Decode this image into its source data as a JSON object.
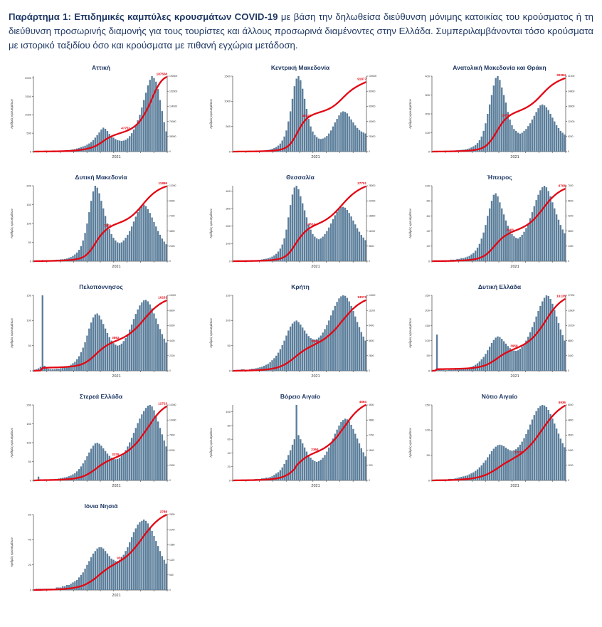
{
  "page": {
    "heading": {
      "bold": "Παράρτημα 1: Επιδημικές καμπύλες κρουσμάτων COVID-19",
      "rest": " με βάση την δηλωθείσα διεύθυνση μόνιμης κατοικίας του κρούσματος ή τη διεύθυνση προσωρινής διαμονής για τους τουρίστες και άλλους προσωρινά διαμένοντες στην Ελλάδα. Συμπεριλαμβάνονται τόσο κρούσματα με ιστορικό ταξιδίου όσο και κρούσματα με πιθανή εγχώρια μετάδοση."
    },
    "colors": {
      "title": "#1f3864",
      "bar": "#5b7e9b",
      "line": "#e30613",
      "axis": "#444444",
      "tick_text": "#333333"
    }
  },
  "axis": {
    "ylabel": "Αριθμός κρουσμάτων",
    "xtick": "2021"
  },
  "chart_data": [
    {
      "type": "bar",
      "title": "Αττική",
      "ylabel": "Αριθμός κρουσμάτων",
      "xtick": "2021",
      "ymax": 2050,
      "ystep": 500,
      "total": 187558,
      "mid": 47751,
      "mid_index": 45,
      "values": [
        5,
        8,
        12,
        15,
        10,
        9,
        7,
        6,
        8,
        10,
        12,
        15,
        18,
        22,
        25,
        30,
        35,
        40,
        50,
        60,
        70,
        85,
        100,
        120,
        140,
        160,
        190,
        220,
        260,
        310,
        380,
        450,
        520,
        600,
        650,
        620,
        560,
        480,
        420,
        380,
        340,
        310,
        300,
        290,
        300,
        320,
        360,
        420,
        500,
        600,
        720,
        850,
        1000,
        1200,
        1400,
        1600,
        1800,
        1950,
        2050,
        2000,
        1900,
        1700,
        1400,
        1100,
        800,
        550
      ]
    },
    {
      "type": "bar",
      "title": "Κεντρική Μακεδονία",
      "ylabel": "Αριθμός κρουσμάτων",
      "xtick": "2021",
      "ymax": 1500,
      "ystep": 500,
      "total": 91877,
      "mid": 48143,
      "mid_index": 36,
      "values": [
        3,
        5,
        7,
        9,
        8,
        6,
        5,
        6,
        8,
        10,
        12,
        14,
        16,
        18,
        20,
        24,
        28,
        34,
        42,
        55,
        70,
        90,
        120,
        160,
        220,
        300,
        420,
        600,
        800,
        1050,
        1300,
        1450,
        1500,
        1420,
        1250,
        1050,
        850,
        650,
        500,
        400,
        330,
        290,
        260,
        250,
        260,
        280,
        310,
        360,
        420,
        500,
        580,
        650,
        720,
        780,
        800,
        790,
        760,
        700,
        640,
        580,
        520,
        470,
        430,
        400,
        380,
        360
      ]
    },
    {
      "type": "bar",
      "title": "Ανατολική Μακεδονία και Θράκη",
      "ylabel": "Αριθμός κρουσμάτων",
      "xtick": "2021",
      "ymax": 400,
      "ystep": 100,
      "total": 30084,
      "mid": 19704,
      "mid_index": 36,
      "values": [
        1,
        2,
        2,
        3,
        3,
        2,
        2,
        3,
        4,
        5,
        5,
        6,
        7,
        8,
        9,
        10,
        12,
        14,
        17,
        22,
        28,
        35,
        45,
        60,
        80,
        110,
        150,
        200,
        250,
        300,
        350,
        390,
        400,
        380,
        340,
        300,
        260,
        210,
        170,
        140,
        120,
        110,
        100,
        95,
        100,
        110,
        120,
        135,
        150,
        170,
        190,
        210,
        230,
        245,
        250,
        245,
        235,
        220,
        200,
        180,
        160,
        140,
        125,
        110,
        100,
        90
      ]
    },
    {
      "type": "bar",
      "title": "Δυτική Μακεδονία",
      "ylabel": "Αριθμός κρουσμάτων",
      "xtick": "2021",
      "ymax": 200,
      "ystep": 50,
      "total": 11899,
      "mid": 7850,
      "mid_index": 36,
      "values": [
        1,
        1,
        2,
        2,
        3,
        2,
        2,
        2,
        3,
        3,
        3,
        4,
        4,
        5,
        5,
        6,
        7,
        9,
        11,
        14,
        18,
        23,
        30,
        40,
        55,
        75,
        100,
        130,
        160,
        185,
        200,
        195,
        180,
        160,
        140,
        120,
        100,
        85,
        72,
        62,
        55,
        50,
        48,
        50,
        55,
        62,
        70,
        80,
        92,
        105,
        118,
        130,
        140,
        148,
        150,
        146,
        138,
        128,
        116,
        104,
        92,
        80,
        70,
        60,
        52,
        45
      ]
    },
    {
      "type": "bar",
      "title": "Θεσσαλία",
      "ylabel": "Αριθμός κρουσμάτων",
      "xtick": "2021",
      "ymax": 430,
      "ystep": 100,
      "total": 27701,
      "mid": 13614,
      "mid_index": 38,
      "values": [
        1,
        2,
        3,
        3,
        4,
        3,
        3,
        3,
        4,
        5,
        5,
        6,
        7,
        8,
        10,
        12,
        14,
        17,
        21,
        26,
        33,
        42,
        55,
        72,
        95,
        130,
        180,
        250,
        320,
        380,
        420,
        430,
        410,
        370,
        330,
        290,
        250,
        210,
        180,
        155,
        140,
        130,
        125,
        130,
        140,
        155,
        172,
        192,
        215,
        240,
        262,
        282,
        298,
        308,
        310,
        305,
        292,
        275,
        255,
        232,
        210,
        188,
        168,
        150,
        135,
        120
      ]
    },
    {
      "type": "bar",
      "title": "Ήπειρος",
      "ylabel": "Αριθμός κρουσμάτων",
      "xtick": "2021",
      "ymax": 100,
      "ystep": 20,
      "total": 6708,
      "mid": 2903,
      "mid_index": 38,
      "values": [
        0,
        1,
        1,
        1,
        1,
        1,
        1,
        1,
        1,
        2,
        2,
        2,
        3,
        3,
        4,
        4,
        5,
        6,
        7,
        9,
        11,
        14,
        18,
        23,
        30,
        38,
        48,
        60,
        70,
        80,
        88,
        90,
        86,
        78,
        70,
        62,
        54,
        47,
        41,
        36,
        33,
        31,
        30,
        32,
        35,
        39,
        44,
        50,
        57,
        65,
        73,
        81,
        88,
        94,
        98,
        100,
        98,
        93,
        86,
        78,
        70,
        62,
        55,
        48,
        42,
        37
      ]
    },
    {
      "type": "bar",
      "title": "Πελοπόννησος",
      "ylabel": "Αριθμός κρουσμάτων",
      "xtick": "2021",
      "ymax": 150,
      "ystep": 50,
      "total": 10233,
      "mid": 3862,
      "mid_index": 40,
      "values": [
        2,
        3,
        5,
        8,
        150,
        10,
        6,
        4,
        3,
        3,
        3,
        4,
        4,
        5,
        6,
        7,
        8,
        10,
        12,
        15,
        18,
        23,
        29,
        37,
        46,
        57,
        70,
        84,
        96,
        106,
        112,
        114,
        110,
        102,
        93,
        84,
        75,
        67,
        60,
        55,
        52,
        50,
        51,
        54,
        59,
        65,
        73,
        82,
        92,
        103,
        113,
        122,
        130,
        136,
        140,
        141,
        138,
        132,
        124,
        114,
        104,
        93,
        83,
        73,
        64,
        56
      ]
    },
    {
      "type": "bar",
      "title": "Κρήτη",
      "ylabel": "Αριθμός κρουσμάτων",
      "xtick": "2021",
      "ymax": 150,
      "ystep": 50,
      "total": 13072,
      "mid": 3089,
      "mid_index": 40,
      "values": [
        1,
        1,
        2,
        2,
        3,
        3,
        2,
        2,
        3,
        4,
        4,
        5,
        6,
        7,
        8,
        10,
        12,
        14,
        17,
        21,
        25,
        30,
        36,
        43,
        51,
        60,
        70,
        80,
        88,
        94,
        98,
        100,
        97,
        92,
        86,
        80,
        74,
        69,
        65,
        63,
        62,
        63,
        66,
        70,
        76,
        83,
        91,
        100,
        110,
        120,
        129,
        137,
        144,
        148,
        150,
        149,
        145,
        138,
        129,
        119,
        108,
        97,
        87,
        77,
        68,
        60
      ]
    },
    {
      "type": "bar",
      "title": "Δυτική Ελλάδα",
      "ylabel": "Αριθμός κρουσμάτων",
      "xtick": "2021",
      "ymax": 250,
      "ystep": 50,
      "total": 16135,
      "mid": 3958,
      "mid_index": 40,
      "values": [
        2,
        3,
        120,
        4,
        3,
        3,
        2,
        2,
        3,
        3,
        3,
        4,
        4,
        5,
        6,
        7,
        8,
        9,
        11,
        13,
        16,
        20,
        25,
        31,
        38,
        46,
        56,
        68,
        80,
        92,
        102,
        110,
        114,
        112,
        106,
        98,
        90,
        82,
        75,
        70,
        67,
        66,
        68,
        73,
        80,
        89,
        100,
        113,
        128,
        145,
        162,
        180,
        198,
        215,
        230,
        242,
        250,
        248,
        238,
        222,
        202,
        180,
        158,
        137,
        118,
        100
      ]
    },
    {
      "type": "bar",
      "title": "Στερεά Ελλάδα",
      "ylabel": "Αριθμός κρουσμάτων",
      "xtick": "2021",
      "ymax": 200,
      "ystep": 50,
      "total": 12723,
      "mid": 3376,
      "mid_index": 40,
      "values": [
        1,
        2,
        10,
        3,
        2,
        2,
        2,
        2,
        3,
        3,
        3,
        4,
        5,
        6,
        7,
        8,
        9,
        11,
        13,
        16,
        19,
        24,
        30,
        37,
        45,
        54,
        64,
        74,
        84,
        92,
        98,
        100,
        97,
        92,
        85,
        78,
        71,
        65,
        60,
        57,
        56,
        57,
        60,
        65,
        72,
        80,
        90,
        101,
        113,
        126,
        139,
        152,
        164,
        175,
        184,
        192,
        198,
        200,
        196,
        186,
        172,
        156,
        139,
        122,
        106,
        90
      ]
    },
    {
      "type": "bar",
      "title": "Βόρειο Αιγαίο",
      "ylabel": "Αριθμός κρουσμάτων",
      "xtick": "2021",
      "ymax": 110,
      "ystep": 20,
      "total": 4594,
      "mid": 2364,
      "mid_index": 40,
      "values": [
        0,
        1,
        1,
        1,
        1,
        1,
        1,
        1,
        1,
        1,
        1,
        2,
        2,
        2,
        3,
        3,
        4,
        4,
        5,
        6,
        8,
        10,
        12,
        15,
        19,
        24,
        30,
        37,
        44,
        52,
        60,
        110,
        66,
        60,
        54,
        48,
        42,
        37,
        33,
        30,
        28,
        27,
        28,
        30,
        33,
        37,
        42,
        48,
        54,
        61,
        68,
        74,
        80,
        85,
        88,
        90,
        89,
        86,
        81,
        75,
        68,
        61,
        54,
        47,
        41,
        35
      ]
    },
    {
      "type": "bar",
      "title": "Νότιο Αιγαίο",
      "ylabel": "Αριθμός κρουσμάτων",
      "xtick": "2021",
      "ymax": 150,
      "ystep": 50,
      "total": 5936,
      "mid": 1703,
      "mid_index": 42,
      "values": [
        1,
        1,
        2,
        2,
        2,
        2,
        2,
        2,
        3,
        3,
        3,
        4,
        5,
        6,
        7,
        8,
        9,
        10,
        12,
        14,
        16,
        19,
        22,
        26,
        30,
        35,
        40,
        46,
        52,
        58,
        63,
        67,
        70,
        71,
        70,
        68,
        65,
        62,
        60,
        59,
        60,
        62,
        66,
        71,
        77,
        84,
        92,
        101,
        111,
        121,
        130,
        138,
        144,
        148,
        150,
        149,
        146,
        140,
        132,
        123,
        113,
        103,
        93,
        83,
        74,
        66
      ]
    },
    {
      "type": "bar",
      "title": "Ιόνια Νησιά",
      "ylabel": "Αριθμός κρουσμάτων",
      "xtick": "2021",
      "ymax": 60,
      "ystep": 20,
      "total": 2788,
      "mid": 931,
      "mid_index": 42,
      "values": [
        0,
        1,
        1,
        1,
        1,
        1,
        1,
        1,
        1,
        1,
        1,
        2,
        2,
        2,
        3,
        3,
        4,
        4,
        5,
        6,
        7,
        8,
        10,
        12,
        14,
        17,
        20,
        23,
        26,
        29,
        31,
        33,
        34,
        34,
        33,
        31,
        29,
        27,
        25,
        24,
        23,
        23,
        24,
        26,
        28,
        31,
        34,
        38,
        42,
        46,
        49,
        52,
        54,
        55,
        56,
        55,
        53,
        50,
        47,
        43,
        39,
        35,
        31,
        27,
        24,
        21
      ]
    }
  ]
}
